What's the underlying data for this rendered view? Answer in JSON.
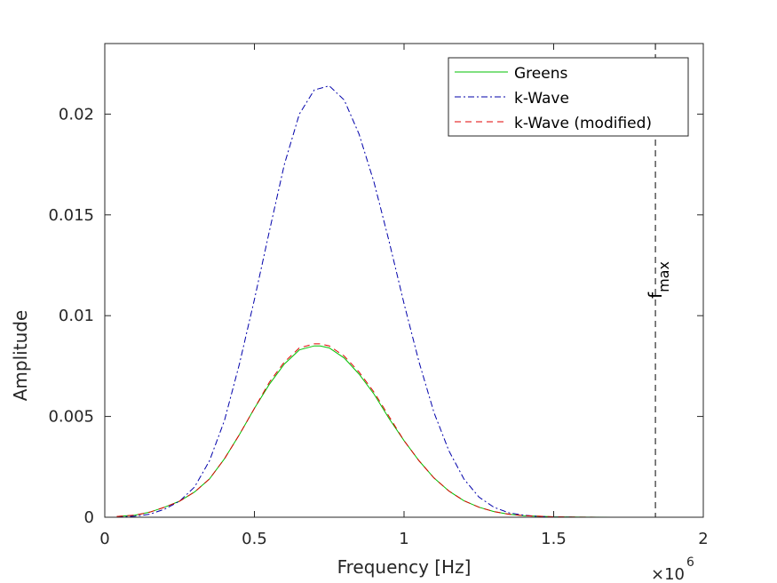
{
  "chart_data": {
    "type": "line",
    "title": "",
    "xlabel": "Frequency [Hz]",
    "ylabel": "Amplitude",
    "x_exponent": {
      "base": "×10",
      "power": "6"
    },
    "xlim": [
      0,
      2
    ],
    "ylim": [
      0,
      0.0235
    ],
    "x_ticks": [
      0,
      0.5,
      1,
      1.5,
      2
    ],
    "x_tick_labels": [
      "0",
      "0.5",
      "1",
      "1.5",
      "2"
    ],
    "y_ticks": [
      0,
      0.005,
      0.01,
      0.015,
      0.02
    ],
    "y_tick_labels": [
      "0",
      "0.005",
      "0.01",
      "0.015",
      "0.02"
    ],
    "legend_position": "top-right",
    "series": [
      {
        "name": "Greens",
        "color": "#00c000",
        "style": "solid",
        "x": [
          0.04,
          0.1,
          0.15,
          0.2,
          0.25,
          0.3,
          0.35,
          0.4,
          0.45,
          0.5,
          0.55,
          0.6,
          0.65,
          0.7,
          0.72,
          0.75,
          0.8,
          0.85,
          0.9,
          0.95,
          1.0,
          1.05,
          1.1,
          1.15,
          1.2,
          1.25,
          1.3,
          1.35,
          1.4,
          1.5,
          1.6,
          1.7,
          1.84
        ],
        "y": [
          4e-05,
          0.0001,
          0.00025,
          0.0005,
          0.0008,
          0.00125,
          0.0019,
          0.0029,
          0.0041,
          0.0054,
          0.0066,
          0.0076,
          0.0083,
          0.0085,
          0.0085,
          0.0084,
          0.0079,
          0.0071,
          0.0061,
          0.0049,
          0.0038,
          0.0028,
          0.00195,
          0.0013,
          0.00082,
          0.0005,
          0.00028,
          0.00015,
          8e-05,
          2e-05,
          5e-06,
          1e-06,
          0.0
        ]
      },
      {
        "name": "k-Wave",
        "color": "#0000aa",
        "style": "dashdot",
        "x": [
          0.04,
          0.1,
          0.15,
          0.2,
          0.25,
          0.3,
          0.35,
          0.4,
          0.45,
          0.5,
          0.55,
          0.6,
          0.65,
          0.7,
          0.75,
          0.8,
          0.85,
          0.9,
          0.95,
          1.0,
          1.05,
          1.1,
          1.15,
          1.2,
          1.25,
          1.3,
          1.35,
          1.4,
          1.45,
          1.5,
          1.6,
          1.7,
          1.84
        ],
        "y": [
          2e-05,
          5e-05,
          0.00015,
          0.0004,
          0.0008,
          0.0015,
          0.0028,
          0.0048,
          0.0076,
          0.0108,
          0.0142,
          0.0175,
          0.02,
          0.0212,
          0.0214,
          0.0207,
          0.019,
          0.0166,
          0.0137,
          0.0106,
          0.0077,
          0.0052,
          0.0033,
          0.0019,
          0.001,
          0.0005,
          0.00022,
          0.0001,
          4e-05,
          1e-05,
          2e-06,
          0.0,
          0.0
        ]
      },
      {
        "name": "k-Wave (modified)",
        "color": "#e00000",
        "style": "dashed",
        "x": [
          0.04,
          0.1,
          0.15,
          0.2,
          0.25,
          0.3,
          0.35,
          0.4,
          0.45,
          0.5,
          0.55,
          0.6,
          0.65,
          0.7,
          0.72,
          0.75,
          0.8,
          0.85,
          0.9,
          0.95,
          1.0,
          1.05,
          1.1,
          1.15,
          1.2,
          1.25,
          1.3,
          1.35,
          1.4,
          1.5,
          1.6,
          1.7,
          1.84
        ],
        "y": [
          4e-05,
          0.0001,
          0.00025,
          0.0005,
          0.0008,
          0.00125,
          0.0019,
          0.0029,
          0.0041,
          0.0054,
          0.0067,
          0.0077,
          0.0084,
          0.0086,
          0.0086,
          0.0085,
          0.008,
          0.0072,
          0.0062,
          0.005,
          0.0038,
          0.0028,
          0.00195,
          0.0013,
          0.00082,
          0.0005,
          0.00028,
          0.00015,
          8e-05,
          2e-05,
          5e-06,
          1e-06,
          0.0
        ]
      }
    ],
    "annotations": [
      {
        "type": "vline",
        "x": 1.84,
        "color": "#000000",
        "style": "dashed",
        "label": "f",
        "subscript": "max"
      }
    ]
  }
}
